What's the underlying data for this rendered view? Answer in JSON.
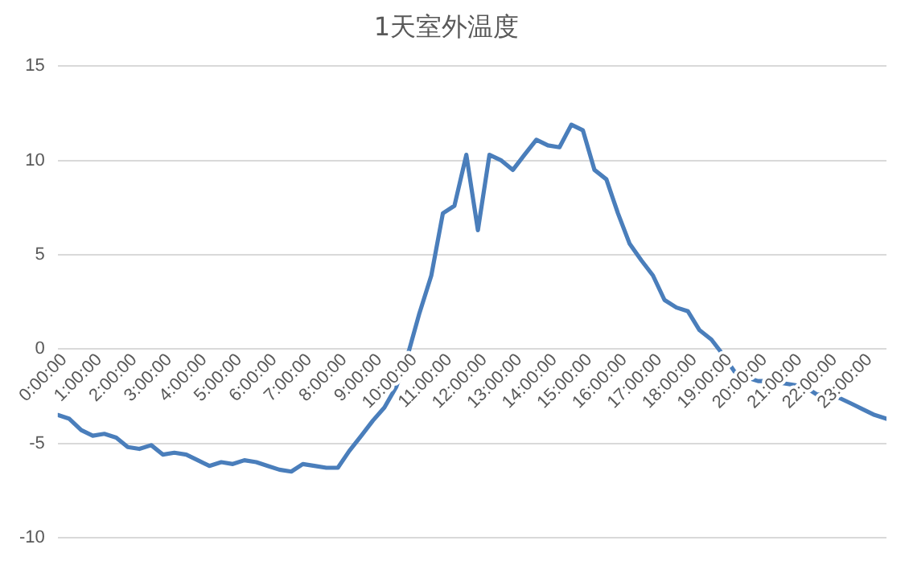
{
  "chart_data": {
    "type": "line",
    "title": "1天室外温度",
    "x": [
      0,
      0.33,
      0.67,
      1,
      1.33,
      1.67,
      2,
      2.33,
      2.67,
      3,
      3.33,
      3.67,
      4,
      4.33,
      4.67,
      5,
      5.33,
      5.67,
      6,
      6.33,
      6.67,
      7,
      7.33,
      7.67,
      8,
      8.33,
      8.67,
      9,
      9.33,
      9.67,
      10,
      10.33,
      10.67,
      11,
      11.33,
      11.67,
      12,
      12.33,
      12.67,
      13,
      13.33,
      13.67,
      14,
      14.33,
      14.67,
      15,
      15.33,
      15.67,
      16,
      16.33,
      16.67,
      17,
      17.33,
      17.67,
      18,
      18.33,
      18.67,
      19,
      19.33,
      19.67,
      20,
      20.33,
      20.67,
      21,
      21.33,
      21.67,
      22,
      22.33,
      22.67,
      23,
      23.33,
      23.67
    ],
    "series": [
      {
        "color": "#4a7ebb",
        "values": [
          -3.5,
          -3.7,
          -4.3,
          -4.6,
          -4.5,
          -4.7,
          -5.2,
          -5.3,
          -5.1,
          -5.6,
          -5.5,
          -5.6,
          -5.9,
          -6.2,
          -6.0,
          -6.1,
          -5.9,
          -6.0,
          -6.2,
          -6.4,
          -6.5,
          -6.1,
          -6.2,
          -6.3,
          -6.3,
          -5.4,
          -4.6,
          -3.8,
          -3.1,
          -2.0,
          -0.3,
          1.9,
          3.9,
          7.2,
          7.6,
          10.3,
          6.3,
          10.3,
          10.0,
          9.5,
          10.3,
          11.1,
          10.8,
          10.7,
          11.9,
          11.6,
          9.5,
          9.0,
          7.2,
          5.6,
          4.7,
          3.9,
          2.6,
          2.2,
          2.0,
          1.0,
          0.5,
          -0.3,
          -1.2,
          -1.5,
          -1.7,
          -1.7,
          -1.8,
          -1.9,
          -2.0,
          -2.4,
          -2.5,
          -2.6,
          -2.9,
          -3.2,
          -3.5,
          -3.7
        ]
      }
    ],
    "xlim": [
      0,
      23.67
    ],
    "xticks": [
      {
        "value": 0,
        "label": "0:00:00"
      },
      {
        "value": 1,
        "label": "1:00:00"
      },
      {
        "value": 2,
        "label": "2:00:00"
      },
      {
        "value": 3,
        "label": "3:00:00"
      },
      {
        "value": 4,
        "label": "4:00:00"
      },
      {
        "value": 5,
        "label": "5:00:00"
      },
      {
        "value": 6,
        "label": "6:00:00"
      },
      {
        "value": 7,
        "label": "7:00:00"
      },
      {
        "value": 8,
        "label": "8:00:00"
      },
      {
        "value": 9,
        "label": "9:00:00"
      },
      {
        "value": 10,
        "label": "10:00:00"
      },
      {
        "value": 11,
        "label": "11:00:00"
      },
      {
        "value": 12,
        "label": "12:00:00"
      },
      {
        "value": 13,
        "label": "13:00:00"
      },
      {
        "value": 14,
        "label": "14:00:00"
      },
      {
        "value": 15,
        "label": "15:00:00"
      },
      {
        "value": 16,
        "label": "16:00:00"
      },
      {
        "value": 17,
        "label": "17:00:00"
      },
      {
        "value": 18,
        "label": "18:00:00"
      },
      {
        "value": 19,
        "label": "19:00:00"
      },
      {
        "value": 20,
        "label": "20:00:00"
      },
      {
        "value": 21,
        "label": "21:00:00"
      },
      {
        "value": 22,
        "label": "22:00:00"
      },
      {
        "value": 23,
        "label": "23:00:00"
      }
    ],
    "ylim": [
      -10,
      15
    ],
    "yticks": [
      -10,
      -5,
      0,
      5,
      10,
      15
    ],
    "grid": "y",
    "marker": "none",
    "line_style": "solid"
  }
}
